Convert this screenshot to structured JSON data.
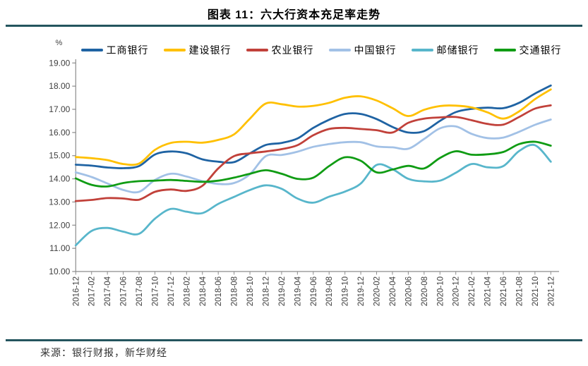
{
  "header": {
    "title": "图表 11：六大行资本充足率走势"
  },
  "source": {
    "text": "来源：银行财报，新华财经"
  },
  "chart_data": {
    "type": "line",
    "title": "图表 11：六大行资本充足率走势",
    "ylabel": "%",
    "ylim": [
      10,
      19
    ],
    "ytick_step": 1,
    "y_ticks": [
      "10.00",
      "11.00",
      "12.00",
      "13.00",
      "14.00",
      "15.00",
      "16.00",
      "17.00",
      "18.00",
      "19.00"
    ],
    "grid": false,
    "legend_position": "top",
    "smooth": true,
    "axis_color": "#8C8C8C",
    "tick_label_color": "#3F3F3F",
    "x": [
      "2016-12",
      "2017-02",
      "2017-04",
      "2017-06",
      "2017-08",
      "2017-10",
      "2017-12",
      "2018-02",
      "2018-04",
      "2018-06",
      "2018-08",
      "2018-10",
      "2018-12",
      "2019-02",
      "2019-04",
      "2019-06",
      "2019-08",
      "2019-10",
      "2019-12",
      "2020-02",
      "2020-04",
      "2020-06",
      "2020-08",
      "2020-10",
      "2020-12",
      "2021-02",
      "2021-04",
      "2021-06",
      "2021-08",
      "2021-10",
      "2021-12"
    ],
    "series": [
      {
        "name": "工商银行",
        "color": "#1F63A3",
        "values": [
          14.61,
          14.57,
          14.49,
          14.46,
          14.55,
          15.05,
          15.18,
          15.1,
          14.84,
          14.74,
          14.72,
          15.1,
          15.46,
          15.55,
          15.74,
          16.2,
          16.55,
          16.8,
          16.8,
          16.58,
          16.24,
          16.0,
          16.06,
          16.5,
          16.88,
          17.02,
          17.07,
          17.05,
          17.28,
          17.68,
          18.03
        ]
      },
      {
        "name": "建设银行",
        "color": "#FFC000",
        "values": [
          14.94,
          14.89,
          14.81,
          14.64,
          14.66,
          15.25,
          15.55,
          15.6,
          15.56,
          15.68,
          15.92,
          16.6,
          17.25,
          17.22,
          17.12,
          17.15,
          17.28,
          17.5,
          17.56,
          17.38,
          17.05,
          16.71,
          16.98,
          17.14,
          17.16,
          17.08,
          16.87,
          16.6,
          16.91,
          17.44,
          17.86
        ]
      },
      {
        "name": "农业银行",
        "color": "#C1413A",
        "values": [
          13.04,
          13.09,
          13.17,
          13.15,
          13.1,
          13.44,
          13.54,
          13.48,
          13.7,
          14.45,
          14.98,
          15.1,
          15.18,
          15.28,
          15.45,
          15.88,
          16.15,
          16.2,
          16.15,
          16.1,
          16.0,
          16.42,
          16.6,
          16.65,
          16.67,
          16.53,
          16.37,
          16.34,
          16.67,
          17.03,
          17.17
        ]
      },
      {
        "name": "中国银行",
        "color": "#A2C1E6",
        "values": [
          14.28,
          14.08,
          13.8,
          13.52,
          13.44,
          13.95,
          14.22,
          14.1,
          13.9,
          13.78,
          13.82,
          14.2,
          14.98,
          15.03,
          15.17,
          15.38,
          15.5,
          15.58,
          15.58,
          15.4,
          15.36,
          15.3,
          15.72,
          16.18,
          16.26,
          15.94,
          15.76,
          15.78,
          16.03,
          16.33,
          16.56
        ]
      },
      {
        "name": "邮储银行",
        "color": "#58B6CB",
        "values": [
          11.13,
          11.75,
          11.88,
          11.72,
          11.63,
          12.28,
          12.7,
          12.58,
          12.52,
          12.92,
          13.22,
          13.52,
          13.72,
          13.57,
          13.15,
          12.97,
          13.23,
          13.45,
          13.8,
          14.6,
          14.42,
          14.0,
          13.89,
          13.92,
          14.26,
          14.64,
          14.5,
          14.55,
          15.2,
          15.45,
          14.74
        ]
      },
      {
        "name": "交通银行",
        "color": "#109C14",
        "values": [
          14.02,
          13.74,
          13.67,
          13.82,
          13.9,
          13.92,
          13.95,
          13.91,
          13.87,
          13.92,
          14.05,
          14.22,
          14.37,
          14.22,
          14.0,
          14.05,
          14.55,
          14.93,
          14.78,
          14.28,
          14.4,
          14.56,
          14.45,
          14.9,
          15.19,
          15.04,
          15.06,
          15.16,
          15.5,
          15.6,
          15.43
        ]
      }
    ]
  }
}
